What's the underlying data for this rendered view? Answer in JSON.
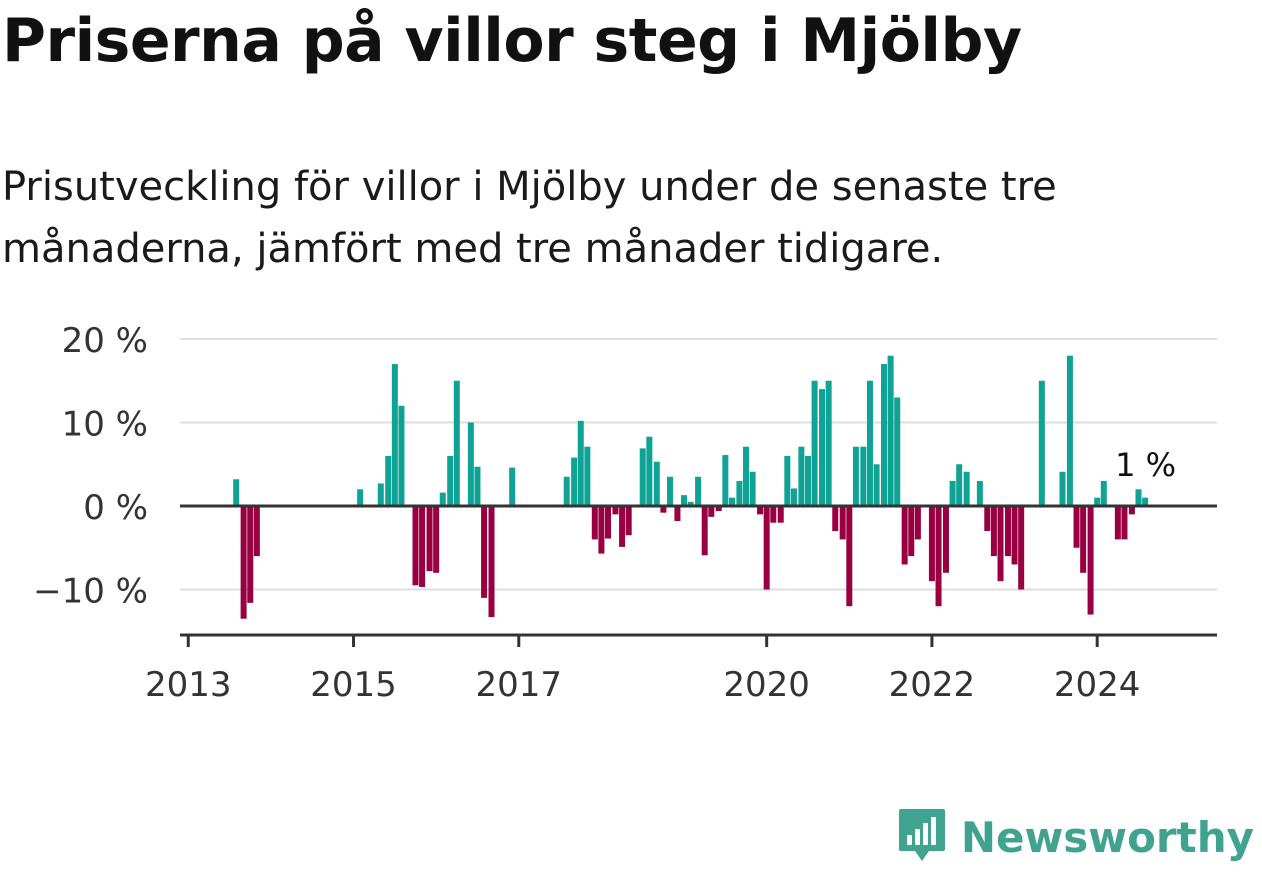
{
  "title": "Priserna på villor steg i Mjölby",
  "subtitle": "Prisutveckling för villor i Mjölby under de senaste tre månaderna, jämfört med tre månader tidigare.",
  "brand": {
    "name": "Newsworthy",
    "icon": "bar-chart-logo-icon"
  },
  "colors": {
    "positive": "#0ea394",
    "negative": "#990042",
    "grid": "#dddddd",
    "axis": "#333333"
  },
  "chart_data": {
    "type": "bar",
    "x_unit": "year",
    "x_range": [
      2012.9,
      2025.45
    ],
    "ylim": [
      -15,
      20
    ],
    "y_ticks": [
      {
        "value": 20,
        "label": "20 %"
      },
      {
        "value": 10,
        "label": "10 %"
      },
      {
        "value": 0,
        "label": "0 %"
      },
      {
        "value": -10,
        "label": "−10 %"
      }
    ],
    "x_ticks": [
      {
        "value": 2013,
        "label": "2013"
      },
      {
        "value": 2015,
        "label": "2015"
      },
      {
        "value": 2017,
        "label": "2017"
      },
      {
        "value": 2020,
        "label": "2020"
      },
      {
        "value": 2022,
        "label": "2022"
      },
      {
        "value": 2024,
        "label": "2024"
      }
    ],
    "grid": true,
    "annotation": {
      "text": "1 %",
      "x": 2024.58,
      "y": 1
    },
    "points": [
      {
        "x": 2013.58,
        "y": 3.2
      },
      {
        "x": 2013.67,
        "y": -13.5
      },
      {
        "x": 2013.75,
        "y": -11.6
      },
      {
        "x": 2013.83,
        "y": -6.0
      },
      {
        "x": 2015.08,
        "y": 2.0
      },
      {
        "x": 2015.33,
        "y": 2.7
      },
      {
        "x": 2015.42,
        "y": 6.0
      },
      {
        "x": 2015.5,
        "y": 17.0
      },
      {
        "x": 2015.58,
        "y": 12.0
      },
      {
        "x": 2015.75,
        "y": -9.5
      },
      {
        "x": 2015.83,
        "y": -9.7
      },
      {
        "x": 2015.92,
        "y": -7.8
      },
      {
        "x": 2016.0,
        "y": -8.0
      },
      {
        "x": 2016.08,
        "y": 1.6
      },
      {
        "x": 2016.17,
        "y": 6.0
      },
      {
        "x": 2016.25,
        "y": 15.0
      },
      {
        "x": 2016.42,
        "y": 10.0
      },
      {
        "x": 2016.5,
        "y": 4.7
      },
      {
        "x": 2016.58,
        "y": -11.0
      },
      {
        "x": 2016.67,
        "y": -13.3
      },
      {
        "x": 2016.92,
        "y": 4.6
      },
      {
        "x": 2017.58,
        "y": 3.5
      },
      {
        "x": 2017.67,
        "y": 5.8
      },
      {
        "x": 2017.75,
        "y": 10.2
      },
      {
        "x": 2017.83,
        "y": 7.1
      },
      {
        "x": 2017.92,
        "y": -4.0
      },
      {
        "x": 2018.0,
        "y": -5.7
      },
      {
        "x": 2018.08,
        "y": -3.9
      },
      {
        "x": 2018.17,
        "y": -1.0
      },
      {
        "x": 2018.25,
        "y": -4.9
      },
      {
        "x": 2018.33,
        "y": -3.5
      },
      {
        "x": 2018.5,
        "y": 6.9
      },
      {
        "x": 2018.58,
        "y": 8.3
      },
      {
        "x": 2018.67,
        "y": 5.3
      },
      {
        "x": 2018.75,
        "y": -0.8
      },
      {
        "x": 2018.83,
        "y": 3.5
      },
      {
        "x": 2018.92,
        "y": -1.8
      },
      {
        "x": 2019.0,
        "y": 1.3
      },
      {
        "x": 2019.08,
        "y": 0.5
      },
      {
        "x": 2019.17,
        "y": 3.5
      },
      {
        "x": 2019.25,
        "y": -5.9
      },
      {
        "x": 2019.33,
        "y": -1.3
      },
      {
        "x": 2019.42,
        "y": -0.6
      },
      {
        "x": 2019.5,
        "y": 6.1
      },
      {
        "x": 2019.58,
        "y": 1.0
      },
      {
        "x": 2019.67,
        "y": 3.0
      },
      {
        "x": 2019.75,
        "y": 7.1
      },
      {
        "x": 2019.83,
        "y": 4.1
      },
      {
        "x": 2019.92,
        "y": -1.0
      },
      {
        "x": 2020.0,
        "y": -10.0
      },
      {
        "x": 2020.08,
        "y": -2.0
      },
      {
        "x": 2020.17,
        "y": -2.0
      },
      {
        "x": 2020.25,
        "y": 6.0
      },
      {
        "x": 2020.33,
        "y": 2.1
      },
      {
        "x": 2020.42,
        "y": 7.1
      },
      {
        "x": 2020.5,
        "y": 6.0
      },
      {
        "x": 2020.58,
        "y": 15.0
      },
      {
        "x": 2020.67,
        "y": 14.0
      },
      {
        "x": 2020.75,
        "y": 15.0
      },
      {
        "x": 2020.83,
        "y": -3.0
      },
      {
        "x": 2020.92,
        "y": -4.0
      },
      {
        "x": 2021.0,
        "y": -12.0
      },
      {
        "x": 2021.08,
        "y": 7.1
      },
      {
        "x": 2021.17,
        "y": 7.1
      },
      {
        "x": 2021.25,
        "y": 15.0
      },
      {
        "x": 2021.33,
        "y": 5.0
      },
      {
        "x": 2021.42,
        "y": 17.0
      },
      {
        "x": 2021.5,
        "y": 18.0
      },
      {
        "x": 2021.58,
        "y": 13.0
      },
      {
        "x": 2021.67,
        "y": -7.0
      },
      {
        "x": 2021.75,
        "y": -6.0
      },
      {
        "x": 2021.83,
        "y": -4.0
      },
      {
        "x": 2022.0,
        "y": -9.0
      },
      {
        "x": 2022.08,
        "y": -12.0
      },
      {
        "x": 2022.17,
        "y": -8.0
      },
      {
        "x": 2022.25,
        "y": 3.0
      },
      {
        "x": 2022.33,
        "y": 5.0
      },
      {
        "x": 2022.42,
        "y": 4.1
      },
      {
        "x": 2022.58,
        "y": 3.0
      },
      {
        "x": 2022.67,
        "y": -3.0
      },
      {
        "x": 2022.75,
        "y": -6.0
      },
      {
        "x": 2022.83,
        "y": -9.0
      },
      {
        "x": 2022.92,
        "y": -6.0
      },
      {
        "x": 2023.0,
        "y": -7.0
      },
      {
        "x": 2023.08,
        "y": -10.0
      },
      {
        "x": 2023.33,
        "y": 15.0
      },
      {
        "x": 2023.58,
        "y": 4.1
      },
      {
        "x": 2023.67,
        "y": 18.0
      },
      {
        "x": 2023.75,
        "y": -5.0
      },
      {
        "x": 2023.83,
        "y": -8.0
      },
      {
        "x": 2023.92,
        "y": -13.0
      },
      {
        "x": 2024.0,
        "y": 1.0
      },
      {
        "x": 2024.08,
        "y": 3.0
      },
      {
        "x": 2024.25,
        "y": -4.0
      },
      {
        "x": 2024.33,
        "y": -4.0
      },
      {
        "x": 2024.42,
        "y": -1.0
      },
      {
        "x": 2024.5,
        "y": 2.0
      },
      {
        "x": 2024.58,
        "y": 1.0
      }
    ]
  }
}
